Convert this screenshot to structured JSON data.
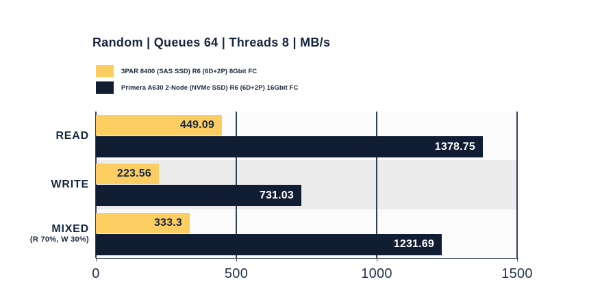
{
  "title": "Random | Queues 64 | Threads 8 | MB/s",
  "colors": {
    "series1": "#FCCD60",
    "series2": "#101D33",
    "text": "#16263F",
    "band_light": "#FBFBFB",
    "band_shaded": "#ECECEC",
    "gridline": "#32415A",
    "value_on_series1": "#16263F",
    "value_on_series2": "#FFFFFF"
  },
  "legend": [
    {
      "label": "3PAR 8400 (SAS SSD) R6 (6D+2P) 8Gbit FC",
      "color": "#FCCD60"
    },
    {
      "label": "Primera A630 2-Node (NVMe SSD) R6 (6D+2P) 16Gbit FC",
      "color": "#101D33"
    }
  ],
  "chart_data": {
    "type": "bar",
    "orientation": "horizontal",
    "title": "Random | Queues 64 | Threads 8 | MB/s",
    "categories": [
      "READ",
      "WRITE",
      "MIXED"
    ],
    "category_sublabels": [
      "",
      "",
      "(R 70%, W 30%)"
    ],
    "series": [
      {
        "name": "3PAR 8400 (SAS SSD) R6 (6D+2P) 8Gbit FC",
        "color": "#FCCD60",
        "values": [
          449.09,
          223.56,
          333.3
        ],
        "labels": [
          "449.09",
          "223.56",
          "333.3"
        ]
      },
      {
        "name": "Primera A630 2-Node (NVMe SSD) R6 (6D+2P) 16Gbit FC",
        "color": "#101D33",
        "values": [
          1378.75,
          731.03,
          1231.69
        ],
        "labels": [
          "1378.75",
          "731.03",
          "1231.69"
        ]
      }
    ],
    "xlabel": "",
    "ylabel": "",
    "xlim": [
      0,
      1500
    ],
    "x_ticks": [
      0,
      500,
      1000,
      1500
    ],
    "x_tick_labels": [
      "0",
      "500",
      "1000",
      "1500"
    ],
    "grid": true,
    "legend_position": "top-left"
  }
}
